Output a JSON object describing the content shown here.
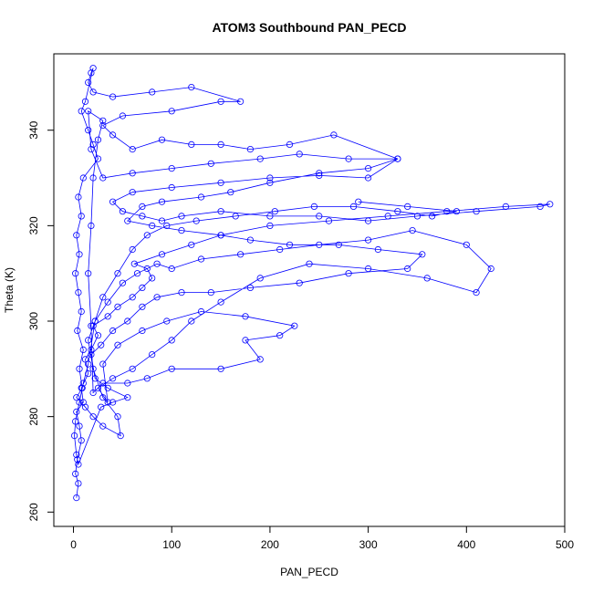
{
  "chart_data": {
    "type": "scatter",
    "style": "points-and-lines",
    "title": "ATOM3 Southbound PAN_PECD",
    "xlabel": "PAN_PECD",
    "ylabel": "Theta (K)",
    "xlim": [
      -20,
      500
    ],
    "ylim": [
      257,
      356
    ],
    "x_ticks": [
      0,
      100,
      200,
      300,
      400,
      500
    ],
    "y_ticks": [
      260,
      280,
      300,
      320,
      340
    ],
    "grid": false,
    "legend": "none",
    "colors": {
      "series": "#0000ff",
      "axes": "#000000",
      "background": "#ffffff"
    },
    "series": [
      {
        "name": "PAN_PECD",
        "points": [
          [
            3,
            263
          ],
          [
            5,
            266
          ],
          [
            2,
            268
          ],
          [
            4,
            271
          ],
          [
            8,
            275
          ],
          [
            6,
            278
          ],
          [
            3,
            281
          ],
          [
            10,
            283
          ],
          [
            8,
            286
          ],
          [
            15,
            289
          ],
          [
            12,
            292
          ],
          [
            18,
            294
          ],
          [
            25,
            297
          ],
          [
            20,
            299
          ],
          [
            35,
            301
          ],
          [
            45,
            303
          ],
          [
            60,
            305
          ],
          [
            70,
            307
          ],
          [
            80,
            309
          ],
          [
            75,
            311
          ],
          [
            62,
            312
          ],
          [
            90,
            314
          ],
          [
            120,
            316
          ],
          [
            150,
            318
          ],
          [
            200,
            320
          ],
          [
            260,
            321
          ],
          [
            320,
            322
          ],
          [
            380,
            323
          ],
          [
            440,
            324
          ],
          [
            485,
            324.5
          ],
          [
            475,
            324
          ],
          [
            410,
            323
          ],
          [
            350,
            322
          ],
          [
            300,
            321
          ],
          [
            250,
            322
          ],
          [
            200,
            322
          ],
          [
            150,
            323
          ],
          [
            110,
            322
          ],
          [
            90,
            321
          ],
          [
            70,
            322
          ],
          [
            50,
            323
          ],
          [
            40,
            325
          ],
          [
            60,
            327
          ],
          [
            100,
            328
          ],
          [
            150,
            329
          ],
          [
            200,
            330
          ],
          [
            250,
            330.5
          ],
          [
            300,
            330
          ],
          [
            330,
            334
          ],
          [
            265,
            339
          ],
          [
            220,
            337
          ],
          [
            180,
            336
          ],
          [
            150,
            337
          ],
          [
            120,
            337
          ],
          [
            90,
            338
          ],
          [
            60,
            336
          ],
          [
            40,
            339
          ],
          [
            30,
            341
          ],
          [
            50,
            343
          ],
          [
            100,
            344
          ],
          [
            150,
            346
          ],
          [
            170,
            346
          ],
          [
            120,
            349
          ],
          [
            80,
            348
          ],
          [
            40,
            347
          ],
          [
            20,
            348
          ],
          [
            15,
            350
          ],
          [
            18,
            352
          ],
          [
            20,
            353
          ],
          [
            12,
            346
          ],
          [
            8,
            344
          ],
          [
            15,
            340
          ],
          [
            20,
            337
          ],
          [
            25,
            334
          ],
          [
            10,
            330
          ],
          [
            5,
            326
          ],
          [
            8,
            322
          ],
          [
            3,
            318
          ],
          [
            6,
            314
          ],
          [
            2,
            310
          ],
          [
            5,
            306
          ],
          [
            8,
            302
          ],
          [
            4,
            298
          ],
          [
            10,
            294
          ],
          [
            6,
            290
          ],
          [
            9,
            286
          ],
          [
            3,
            284
          ],
          [
            12,
            282
          ],
          [
            20,
            280
          ],
          [
            30,
            278
          ],
          [
            48,
            276
          ],
          [
            45,
            280
          ],
          [
            30,
            284
          ],
          [
            20,
            290
          ],
          [
            15,
            296
          ],
          [
            22,
            300
          ],
          [
            35,
            304
          ],
          [
            50,
            308
          ],
          [
            65,
            310
          ],
          [
            85,
            312
          ],
          [
            100,
            311
          ],
          [
            130,
            313
          ],
          [
            170,
            314
          ],
          [
            210,
            315
          ],
          [
            250,
            316
          ],
          [
            300,
            317
          ],
          [
            345,
            319
          ],
          [
            400,
            316
          ],
          [
            425,
            311
          ],
          [
            410,
            306
          ],
          [
            360,
            309
          ],
          [
            300,
            311
          ],
          [
            240,
            312
          ],
          [
            190,
            309
          ],
          [
            150,
            304
          ],
          [
            120,
            300
          ],
          [
            100,
            296
          ],
          [
            80,
            293
          ],
          [
            60,
            290
          ],
          [
            40,
            288
          ],
          [
            25,
            286
          ],
          [
            35,
            283
          ],
          [
            30,
            291
          ],
          [
            45,
            295
          ],
          [
            70,
            298
          ],
          [
            95,
            300
          ],
          [
            130,
            302
          ],
          [
            175,
            301
          ],
          [
            225,
            299
          ],
          [
            210,
            297
          ],
          [
            175,
            296
          ],
          [
            190,
            292
          ],
          [
            150,
            290
          ],
          [
            100,
            290
          ],
          [
            75,
            288
          ],
          [
            55,
            287
          ],
          [
            30,
            287
          ],
          [
            20,
            285
          ],
          [
            18,
            299
          ],
          [
            15,
            310
          ],
          [
            18,
            320
          ],
          [
            20,
            330
          ],
          [
            25,
            338
          ],
          [
            30,
            342
          ],
          [
            15,
            344
          ],
          [
            18,
            336
          ],
          [
            30,
            330
          ],
          [
            60,
            331
          ],
          [
            100,
            332
          ],
          [
            140,
            333
          ],
          [
            190,
            334
          ],
          [
            230,
            335
          ],
          [
            280,
            334
          ],
          [
            330,
            334
          ],
          [
            300,
            332
          ],
          [
            250,
            331
          ],
          [
            200,
            329
          ],
          [
            160,
            327
          ],
          [
            130,
            326
          ],
          [
            90,
            325
          ],
          [
            70,
            324
          ],
          [
            55,
            321
          ],
          [
            80,
            320
          ],
          [
            110,
            319
          ],
          [
            150,
            318
          ],
          [
            180,
            317
          ],
          [
            220,
            316
          ],
          [
            270,
            316
          ],
          [
            310,
            315
          ],
          [
            355,
            314
          ],
          [
            340,
            311
          ],
          [
            280,
            310
          ],
          [
            230,
            308
          ],
          [
            180,
            307
          ],
          [
            140,
            306
          ],
          [
            110,
            306
          ],
          [
            85,
            305
          ],
          [
            70,
            303
          ],
          [
            55,
            300
          ],
          [
            40,
            298
          ],
          [
            28,
            295
          ],
          [
            18,
            293
          ],
          [
            22,
            288
          ],
          [
            35,
            286
          ],
          [
            55,
            284
          ],
          [
            40,
            283
          ],
          [
            28,
            282
          ],
          [
            5,
            270
          ],
          [
            3,
            272
          ],
          [
            1,
            276
          ],
          [
            2,
            279
          ],
          [
            6,
            283
          ],
          [
            10,
            287
          ],
          [
            15,
            291
          ],
          [
            22,
            300
          ],
          [
            30,
            305
          ],
          [
            45,
            310
          ],
          [
            60,
            315
          ],
          [
            75,
            318
          ],
          [
            95,
            320
          ],
          [
            125,
            321
          ],
          [
            165,
            322
          ],
          [
            205,
            323
          ],
          [
            245,
            324
          ],
          [
            285,
            324
          ],
          [
            330,
            323
          ],
          [
            365,
            322
          ],
          [
            390,
            323
          ],
          [
            340,
            324
          ],
          [
            290,
            325
          ]
        ]
      }
    ]
  }
}
